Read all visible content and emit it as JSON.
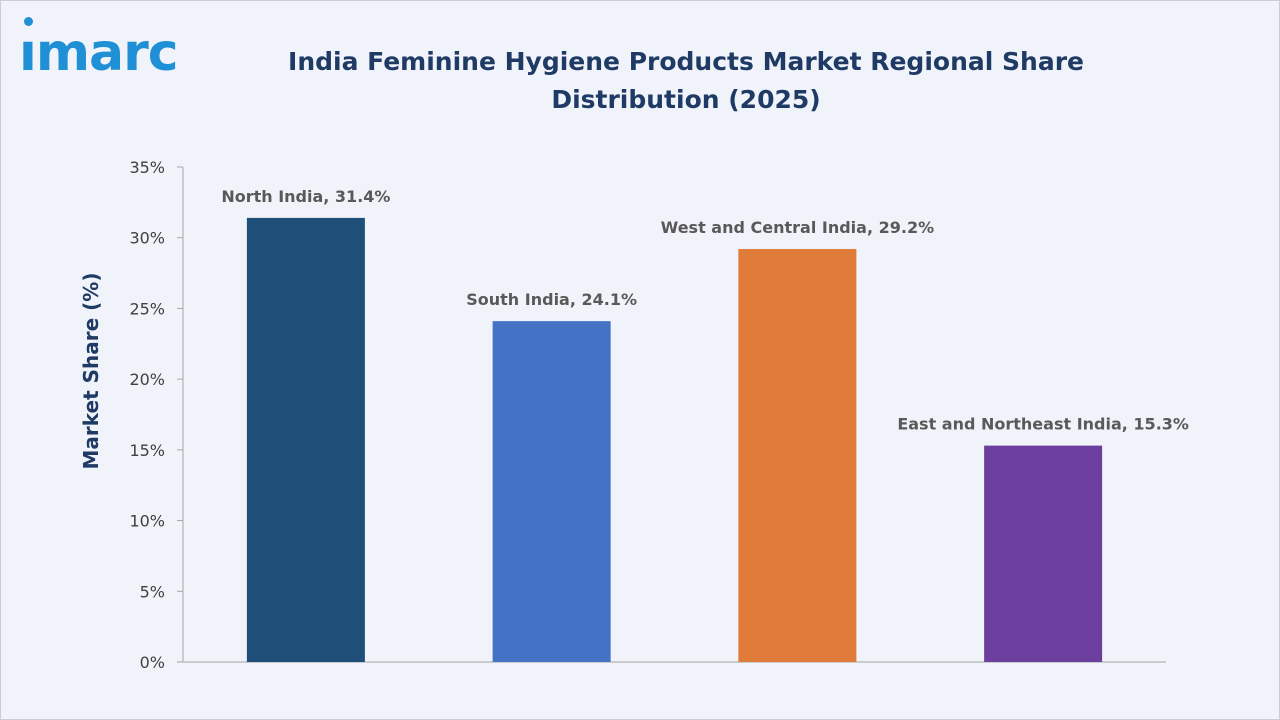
{
  "logo": {
    "text": "ımarc",
    "color": "#1f8fd6"
  },
  "chart_data": {
    "type": "bar",
    "title": "India Feminine Hygiene Products Market Regional Share Distribution (2025)",
    "xlabel": "",
    "ylabel": "Market Share (%)",
    "ylim": [
      0,
      35
    ],
    "yticks": [
      0,
      5,
      10,
      15,
      20,
      25,
      30,
      35
    ],
    "ytick_labels": [
      "0%",
      "5%",
      "10%",
      "15%",
      "20%",
      "25%",
      "30%",
      "35%"
    ],
    "grid": false,
    "legend": "none",
    "categories": [
      "North India",
      "South India",
      "West and Central India",
      "East and Northeast India"
    ],
    "values": [
      31.4,
      24.1,
      29.2,
      15.3
    ],
    "data_labels": [
      "North India, 31.4%",
      "South India, 24.1%",
      "West and Central India, 29.2%",
      "East and Northeast India, 15.3%"
    ],
    "colors": [
      "#1f4e79",
      "#4472c4",
      "#e07b39",
      "#6c3f9f"
    ]
  }
}
